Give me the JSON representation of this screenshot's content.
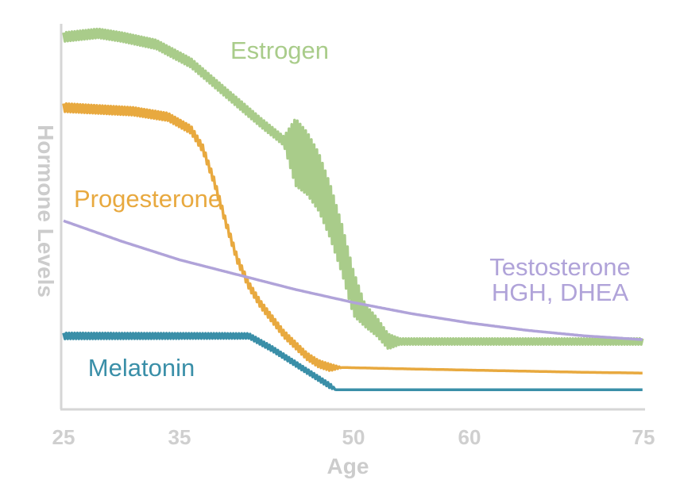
{
  "chart_data": {
    "type": "line",
    "title": "",
    "xlabel": "Age",
    "ylabel": "Hormone Levels",
    "xlim": [
      25,
      75
    ],
    "ylim": [
      0,
      100
    ],
    "x_ticks": [
      25,
      35,
      50,
      60,
      75
    ],
    "y_ticks_shown": false,
    "grid": false,
    "legend": "inline labels",
    "series": [
      {
        "name": "Estrogen",
        "label_lines": [
          "Estrogen"
        ],
        "color": "#a9cc8a",
        "points": [
          [
            25,
            99
          ],
          [
            28,
            100
          ],
          [
            30,
            99
          ],
          [
            33,
            97
          ],
          [
            36,
            92
          ],
          [
            39,
            84
          ],
          [
            42,
            76
          ],
          [
            44,
            71
          ],
          [
            45,
            68
          ],
          [
            46,
            65
          ],
          [
            47,
            60
          ],
          [
            48,
            52
          ],
          [
            49,
            42
          ],
          [
            50,
            30
          ],
          [
            51,
            24
          ],
          [
            52,
            21
          ],
          [
            53,
            17
          ],
          [
            55,
            17
          ],
          [
            60,
            17
          ],
          [
            65,
            17
          ],
          [
            70,
            17
          ],
          [
            75,
            17
          ]
        ],
        "wiggle": [
          [
            25,
            1.2
          ],
          [
            44,
            1.2
          ],
          [
            45,
            9
          ],
          [
            50,
            6
          ],
          [
            51,
            3
          ],
          [
            53,
            2
          ],
          [
            54,
            0.8
          ],
          [
            75,
            0.8
          ]
        ]
      },
      {
        "name": "Progesterone",
        "label_lines": [
          "Progesterone"
        ],
        "color": "#e8a93f",
        "points": [
          [
            25,
            80
          ],
          [
            28,
            79.5
          ],
          [
            31,
            79
          ],
          [
            34,
            77.5
          ],
          [
            36,
            74
          ],
          [
            37,
            69
          ],
          [
            38,
            60
          ],
          [
            39,
            49
          ],
          [
            40,
            39
          ],
          [
            41,
            32
          ],
          [
            42,
            27
          ],
          [
            43,
            23
          ],
          [
            44,
            19
          ],
          [
            45,
            16
          ],
          [
            46,
            13
          ],
          [
            47,
            11
          ],
          [
            48,
            10
          ],
          [
            49,
            10
          ],
          [
            55,
            9.6
          ],
          [
            60,
            9.3
          ],
          [
            65,
            9.0
          ],
          [
            70,
            8.7
          ],
          [
            75,
            8.5
          ]
        ],
        "wiggle": [
          [
            25,
            1.1
          ],
          [
            48,
            0.9
          ],
          [
            49,
            0
          ],
          [
            75,
            0
          ]
        ]
      },
      {
        "name": "Melatonin",
        "label_lines": [
          "Melatonin"
        ],
        "color": "#3a8fa8",
        "points": [
          [
            25,
            18.5
          ],
          [
            30,
            18.5
          ],
          [
            35,
            18.5
          ],
          [
            38,
            18.5
          ],
          [
            41,
            18.5
          ],
          [
            43,
            15
          ],
          [
            45,
            11
          ],
          [
            47,
            7
          ],
          [
            48.5,
            4
          ],
          [
            50,
            4
          ],
          [
            55,
            4
          ],
          [
            60,
            4
          ],
          [
            65,
            4
          ],
          [
            70,
            4
          ],
          [
            75,
            4
          ]
        ],
        "wiggle": [
          [
            25,
            0.8
          ],
          [
            48,
            0.6
          ],
          [
            48.5,
            0
          ],
          [
            75,
            0
          ]
        ]
      },
      {
        "name": "Testosterone HGH, DHEA",
        "label_lines": [
          "Testosterone",
          "HGH, DHEA"
        ],
        "color": "#b0a3d9",
        "points": [
          [
            25,
            49.5
          ],
          [
            30,
            44
          ],
          [
            35,
            39
          ],
          [
            40,
            35
          ],
          [
            45,
            31
          ],
          [
            50,
            27.5
          ],
          [
            55,
            24.5
          ],
          [
            60,
            22
          ],
          [
            65,
            20
          ],
          [
            70,
            18.5
          ],
          [
            75,
            17.5
          ]
        ],
        "wiggle": []
      }
    ]
  }
}
